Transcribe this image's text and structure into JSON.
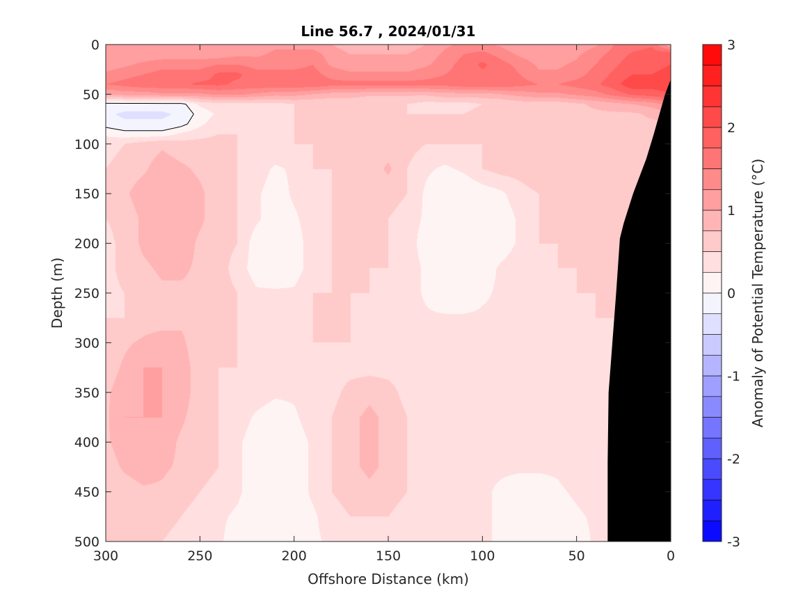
{
  "chart_data": {
    "type": "heatmap",
    "title": "Line 56.7 , 2024/01/31",
    "xlabel": "Offshore Distance (km)",
    "ylabel": "Depth (m)",
    "xlim": [
      300,
      0
    ],
    "ylim": [
      0,
      500
    ],
    "x_reversed": true,
    "y_reversed": true,
    "x_ticks": [
      300,
      250,
      200,
      150,
      100,
      50,
      0
    ],
    "x_tick_labels": [
      "300",
      "250",
      "200",
      "150",
      "100",
      "50",
      "0"
    ],
    "y_ticks": [
      0,
      50,
      100,
      150,
      200,
      250,
      300,
      350,
      400,
      450,
      500
    ],
    "y_tick_labels": [
      "0",
      "50",
      "100",
      "150",
      "200",
      "250",
      "300",
      "350",
      "400",
      "450",
      "500"
    ],
    "colorbar": {
      "label": "Anomaly of Potential Temperature (°C)",
      "range": [
        -3,
        3
      ],
      "step": 0.25,
      "ticks": [
        -3,
        -2,
        -1,
        0,
        1,
        2,
        3
      ],
      "tick_labels": [
        "-3",
        "-2",
        "-1",
        "0",
        "1",
        "2",
        "3"
      ]
    },
    "grid": false,
    "colors": {
      "warm": "#ff0000",
      "cold": "#0000ff",
      "neutral": "#ffffff",
      "bathymetry": "#000000"
    },
    "bathymetry": [
      [
        0,
        35
      ],
      [
        3,
        50
      ],
      [
        6,
        70
      ],
      [
        9,
        90
      ],
      [
        13,
        115
      ],
      [
        18,
        140
      ],
      [
        20,
        150
      ],
      [
        25,
        180
      ],
      [
        27,
        195
      ],
      [
        29,
        250
      ],
      [
        31,
        300
      ],
      [
        33,
        350
      ],
      [
        33.5,
        420
      ],
      [
        33.5,
        500
      ]
    ],
    "field": {
      "x": [
        0,
        10,
        20,
        30,
        40,
        50,
        60,
        70,
        80,
        90,
        100,
        110,
        120,
        130,
        140,
        150,
        160,
        170,
        180,
        190,
        200,
        210,
        220,
        230,
        240,
        250,
        260,
        270,
        280,
        290,
        300
      ],
      "y": [
        0,
        10,
        20,
        30,
        40,
        50,
        60,
        70,
        80,
        90,
        100,
        125,
        150,
        175,
        200,
        225,
        250,
        275,
        300,
        325,
        350,
        375,
        400,
        425,
        450,
        475,
        500
      ],
      "values": [
        [
          1.0,
          1.7,
          1.6,
          1.5,
          1.2,
          1.1,
          1.0,
          1.0,
          1.0,
          1.2,
          1.3,
          1.3,
          1.2,
          1.0,
          0.9,
          0.9,
          0.9,
          0.9,
          1.0,
          1.1,
          1.2,
          1.2,
          1.1,
          1.0,
          1.0,
          1.0,
          1.0,
          1.0,
          1.0,
          1.0,
          1.0
        ],
        [
          2.0,
          1.9,
          1.8,
          1.6,
          1.4,
          1.2,
          1.1,
          1.1,
          1.2,
          1.4,
          1.6,
          1.5,
          1.3,
          1.1,
          1.0,
          1.0,
          1.0,
          1.0,
          1.1,
          1.4,
          1.3,
          1.3,
          1.2,
          1.2,
          1.1,
          1.1,
          1.1,
          1.1,
          1.1,
          1.1,
          1.0
        ],
        [
          2.0,
          1.9,
          1.9,
          1.7,
          1.5,
          1.3,
          1.2,
          1.2,
          1.4,
          1.6,
          1.8,
          1.6,
          1.4,
          1.2,
          1.1,
          1.1,
          1.1,
          1.1,
          1.2,
          1.5,
          1.4,
          1.4,
          1.4,
          1.5,
          1.5,
          1.4,
          1.4,
          1.4,
          1.3,
          1.2,
          1.1
        ],
        [
          2.1,
          2.0,
          2.0,
          1.8,
          1.6,
          1.4,
          1.3,
          1.3,
          1.5,
          1.7,
          1.7,
          1.6,
          1.5,
          1.4,
          1.3,
          1.3,
          1.3,
          1.3,
          1.4,
          1.6,
          1.6,
          1.6,
          1.6,
          1.8,
          1.8,
          1.6,
          1.6,
          1.6,
          1.5,
          1.4,
          1.3
        ],
        [
          2.1,
          2.1,
          2.2,
          1.9,
          1.7,
          1.6,
          1.5,
          1.5,
          1.6,
          1.7,
          1.7,
          1.7,
          1.6,
          1.6,
          1.6,
          1.6,
          1.6,
          1.6,
          1.6,
          1.7,
          1.7,
          1.7,
          1.7,
          1.7,
          1.8,
          1.8,
          1.7,
          1.7,
          1.7,
          1.6,
          1.5
        ],
        [
          2.0,
          1.9,
          1.8,
          1.6,
          1.4,
          1.3,
          1.2,
          1.2,
          1.1,
          1.0,
          0.9,
          0.9,
          0.9,
          0.8,
          0.8,
          0.8,
          0.8,
          0.9,
          0.9,
          1.0,
          1.1,
          1.1,
          1.2,
          1.3,
          1.3,
          1.2,
          1.2,
          1.2,
          1.1,
          1.1,
          1.0
        ],
        [
          1.4,
          1.1,
          1.0,
          0.9,
          0.8,
          0.7,
          0.6,
          0.6,
          0.6,
          0.5,
          0.5,
          0.4,
          0.4,
          0.4,
          0.5,
          0.5,
          0.5,
          0.5,
          0.5,
          0.5,
          0.5,
          0.4,
          0.4,
          0.4,
          0.4,
          0.3,
          -0.1,
          -0.1,
          -0.1,
          -0.1,
          -0.1
        ],
        [
          0.9,
          0.8,
          0.7,
          0.7,
          0.7,
          0.7,
          0.7,
          0.7,
          0.7,
          0.6,
          0.6,
          0.5,
          0.5,
          0.5,
          0.5,
          0.5,
          0.5,
          0.5,
          0.5,
          0.5,
          0.5,
          0.4,
          0.4,
          0.4,
          0.3,
          0.1,
          -0.2,
          -0.3,
          -0.3,
          -0.3,
          -0.2
        ],
        [
          0.7,
          0.7,
          0.7,
          0.7,
          0.7,
          0.7,
          0.7,
          0.7,
          0.7,
          0.6,
          0.6,
          0.5,
          0.5,
          0.5,
          0.5,
          0.5,
          0.5,
          0.6,
          0.6,
          0.6,
          0.5,
          0.3,
          0.5,
          0.5,
          0.4,
          0.2,
          -0.1,
          -0.2,
          -0.2,
          -0.2,
          -0.1
        ],
        [
          0.7,
          0.7,
          0.7,
          0.7,
          0.7,
          0.7,
          0.7,
          0.7,
          0.6,
          0.6,
          0.6,
          0.5,
          0.5,
          0.5,
          0.5,
          0.5,
          0.5,
          0.6,
          0.6,
          0.6,
          0.5,
          0.3,
          0.4,
          0.5,
          0.5,
          0.4,
          0.3,
          0.1,
          0.1,
          0.1,
          0.2
        ],
        [
          0.7,
          0.7,
          0.7,
          0.7,
          0.7,
          0.7,
          0.7,
          0.7,
          0.6,
          0.6,
          0.5,
          0.5,
          0.5,
          0.5,
          0.6,
          0.6,
          0.6,
          0.5,
          0.5,
          0.5,
          0.5,
          0.5,
          0.4,
          0.5,
          0.6,
          0.6,
          0.6,
          0.7,
          0.6,
          0.5,
          0.4
        ],
        [
          0.7,
          0.7,
          0.7,
          0.7,
          0.7,
          0.7,
          0.7,
          0.7,
          0.6,
          0.6,
          0.5,
          0.3,
          0.2,
          0.3,
          0.5,
          0.8,
          0.6,
          0.5,
          0.5,
          0.5,
          0.3,
          0.2,
          0.4,
          0.5,
          0.6,
          0.7,
          0.8,
          0.9,
          0.7,
          0.6,
          0.5
        ],
        [
          0.7,
          0.7,
          0.7,
          0.7,
          0.7,
          0.6,
          0.6,
          0.5,
          0.4,
          0.2,
          0.1,
          0.0,
          0.0,
          0.2,
          0.5,
          0.6,
          0.6,
          0.5,
          0.5,
          0.4,
          0.3,
          0.1,
          0.3,
          0.5,
          0.6,
          0.8,
          0.9,
          1.0,
          0.9,
          0.7,
          0.5
        ],
        [
          0.7,
          0.7,
          0.7,
          0.7,
          0.6,
          0.6,
          0.5,
          0.5,
          0.3,
          0.1,
          0.0,
          0.0,
          0.0,
          0.2,
          0.4,
          0.5,
          0.5,
          0.5,
          0.5,
          0.4,
          0.2,
          0.1,
          0.3,
          0.5,
          0.6,
          0.8,
          0.9,
          0.9,
          0.8,
          0.6,
          0.5
        ],
        [
          0.6,
          0.6,
          0.6,
          0.6,
          0.6,
          0.5,
          0.5,
          0.5,
          0.3,
          0.1,
          0.0,
          0.0,
          0.0,
          0.1,
          0.4,
          0.5,
          0.5,
          0.5,
          0.5,
          0.4,
          0.1,
          0.0,
          0.1,
          0.5,
          0.6,
          0.7,
          0.9,
          0.9,
          0.8,
          0.6,
          0.4
        ],
        [
          0.6,
          0.6,
          0.6,
          0.6,
          0.5,
          0.5,
          0.5,
          0.4,
          0.4,
          0.3,
          0.1,
          0.0,
          0.0,
          0.2,
          0.4,
          0.5,
          0.5,
          0.5,
          0.5,
          0.4,
          0.1,
          0.0,
          0.1,
          0.4,
          0.6,
          0.7,
          0.8,
          0.8,
          0.7,
          0.6,
          0.4
        ],
        [
          0.5,
          0.5,
          0.5,
          0.5,
          0.5,
          0.5,
          0.4,
          0.4,
          0.4,
          0.3,
          0.2,
          0.0,
          0.0,
          0.2,
          0.4,
          0.4,
          0.5,
          0.5,
          0.5,
          0.5,
          0.3,
          0.3,
          0.3,
          0.5,
          0.6,
          0.7,
          0.7,
          0.7,
          0.6,
          0.5,
          0.4
        ],
        [
          0.5,
          0.5,
          0.5,
          0.5,
          0.5,
          0.4,
          0.4,
          0.4,
          0.4,
          0.3,
          0.3,
          0.3,
          0.3,
          0.3,
          0.4,
          0.4,
          0.4,
          0.5,
          0.5,
          0.5,
          0.4,
          0.4,
          0.4,
          0.5,
          0.6,
          0.7,
          0.7,
          0.6,
          0.6,
          0.5,
          0.5
        ],
        [
          0.5,
          0.5,
          0.5,
          0.5,
          0.4,
          0.4,
          0.4,
          0.4,
          0.4,
          0.4,
          0.3,
          0.3,
          0.3,
          0.3,
          0.3,
          0.4,
          0.4,
          0.5,
          0.5,
          0.5,
          0.4,
          0.4,
          0.4,
          0.5,
          0.5,
          0.6,
          0.8,
          0.9,
          0.8,
          0.7,
          0.6
        ],
        [
          0.5,
          0.5,
          0.5,
          0.4,
          0.4,
          0.4,
          0.4,
          0.4,
          0.4,
          0.4,
          0.3,
          0.3,
          0.3,
          0.3,
          0.4,
          0.4,
          0.4,
          0.4,
          0.4,
          0.4,
          0.4,
          0.4,
          0.4,
          0.5,
          0.5,
          0.6,
          0.9,
          1.0,
          1.0,
          0.8,
          0.6
        ],
        [
          0.5,
          0.5,
          0.5,
          0.4,
          0.4,
          0.4,
          0.4,
          0.4,
          0.4,
          0.4,
          0.4,
          0.3,
          0.3,
          0.3,
          0.4,
          0.6,
          0.7,
          0.6,
          0.4,
          0.4,
          0.3,
          0.3,
          0.4,
          0.4,
          0.5,
          0.6,
          0.9,
          1.0,
          1.0,
          0.9,
          0.7
        ],
        [
          0.5,
          0.5,
          0.5,
          0.4,
          0.4,
          0.4,
          0.4,
          0.4,
          0.4,
          0.4,
          0.4,
          0.3,
          0.3,
          0.3,
          0.5,
          0.7,
          0.8,
          0.7,
          0.5,
          0.4,
          0.2,
          0.1,
          0.2,
          0.4,
          0.5,
          0.6,
          0.8,
          1.0,
          1.0,
          1.0,
          0.7
        ],
        [
          0.5,
          0.5,
          0.5,
          0.4,
          0.4,
          0.4,
          0.3,
          0.3,
          0.3,
          0.3,
          0.3,
          0.3,
          0.3,
          0.3,
          0.5,
          0.7,
          0.8,
          0.7,
          0.5,
          0.3,
          0.1,
          0.0,
          0.1,
          0.3,
          0.5,
          0.6,
          0.7,
          0.9,
          1.0,
          0.9,
          0.7
        ],
        [
          0.5,
          0.5,
          0.5,
          0.4,
          0.4,
          0.4,
          0.3,
          0.3,
          0.3,
          0.3,
          0.3,
          0.3,
          0.3,
          0.3,
          0.5,
          0.7,
          0.8,
          0.7,
          0.5,
          0.3,
          0.1,
          0.0,
          0.1,
          0.3,
          0.5,
          0.6,
          0.7,
          0.8,
          0.9,
          0.8,
          0.6
        ],
        [
          0.5,
          0.5,
          0.5,
          0.4,
          0.4,
          0.3,
          0.2,
          0.1,
          0.1,
          0.2,
          0.3,
          0.3,
          0.3,
          0.3,
          0.5,
          0.6,
          0.7,
          0.6,
          0.5,
          0.3,
          0.1,
          0.0,
          0.1,
          0.3,
          0.4,
          0.5,
          0.6,
          0.7,
          0.7,
          0.6,
          0.5
        ],
        [
          0.5,
          0.5,
          0.5,
          0.4,
          0.3,
          0.2,
          0.1,
          0.1,
          0.1,
          0.2,
          0.3,
          0.3,
          0.3,
          0.3,
          0.4,
          0.5,
          0.5,
          0.5,
          0.4,
          0.2,
          0.1,
          0.0,
          0.0,
          0.2,
          0.3,
          0.4,
          0.5,
          0.6,
          0.6,
          0.5,
          0.5
        ],
        [
          0.5,
          0.5,
          0.5,
          0.4,
          0.3,
          0.1,
          0.1,
          0.1,
          0.1,
          0.2,
          0.3,
          0.3,
          0.3,
          0.3,
          0.4,
          0.5,
          0.4,
          0.4,
          0.3,
          0.2,
          0.1,
          0.0,
          0.0,
          0.1,
          0.3,
          0.4,
          0.4,
          0.5,
          0.5,
          0.5,
          0.5
        ]
      ]
    }
  }
}
